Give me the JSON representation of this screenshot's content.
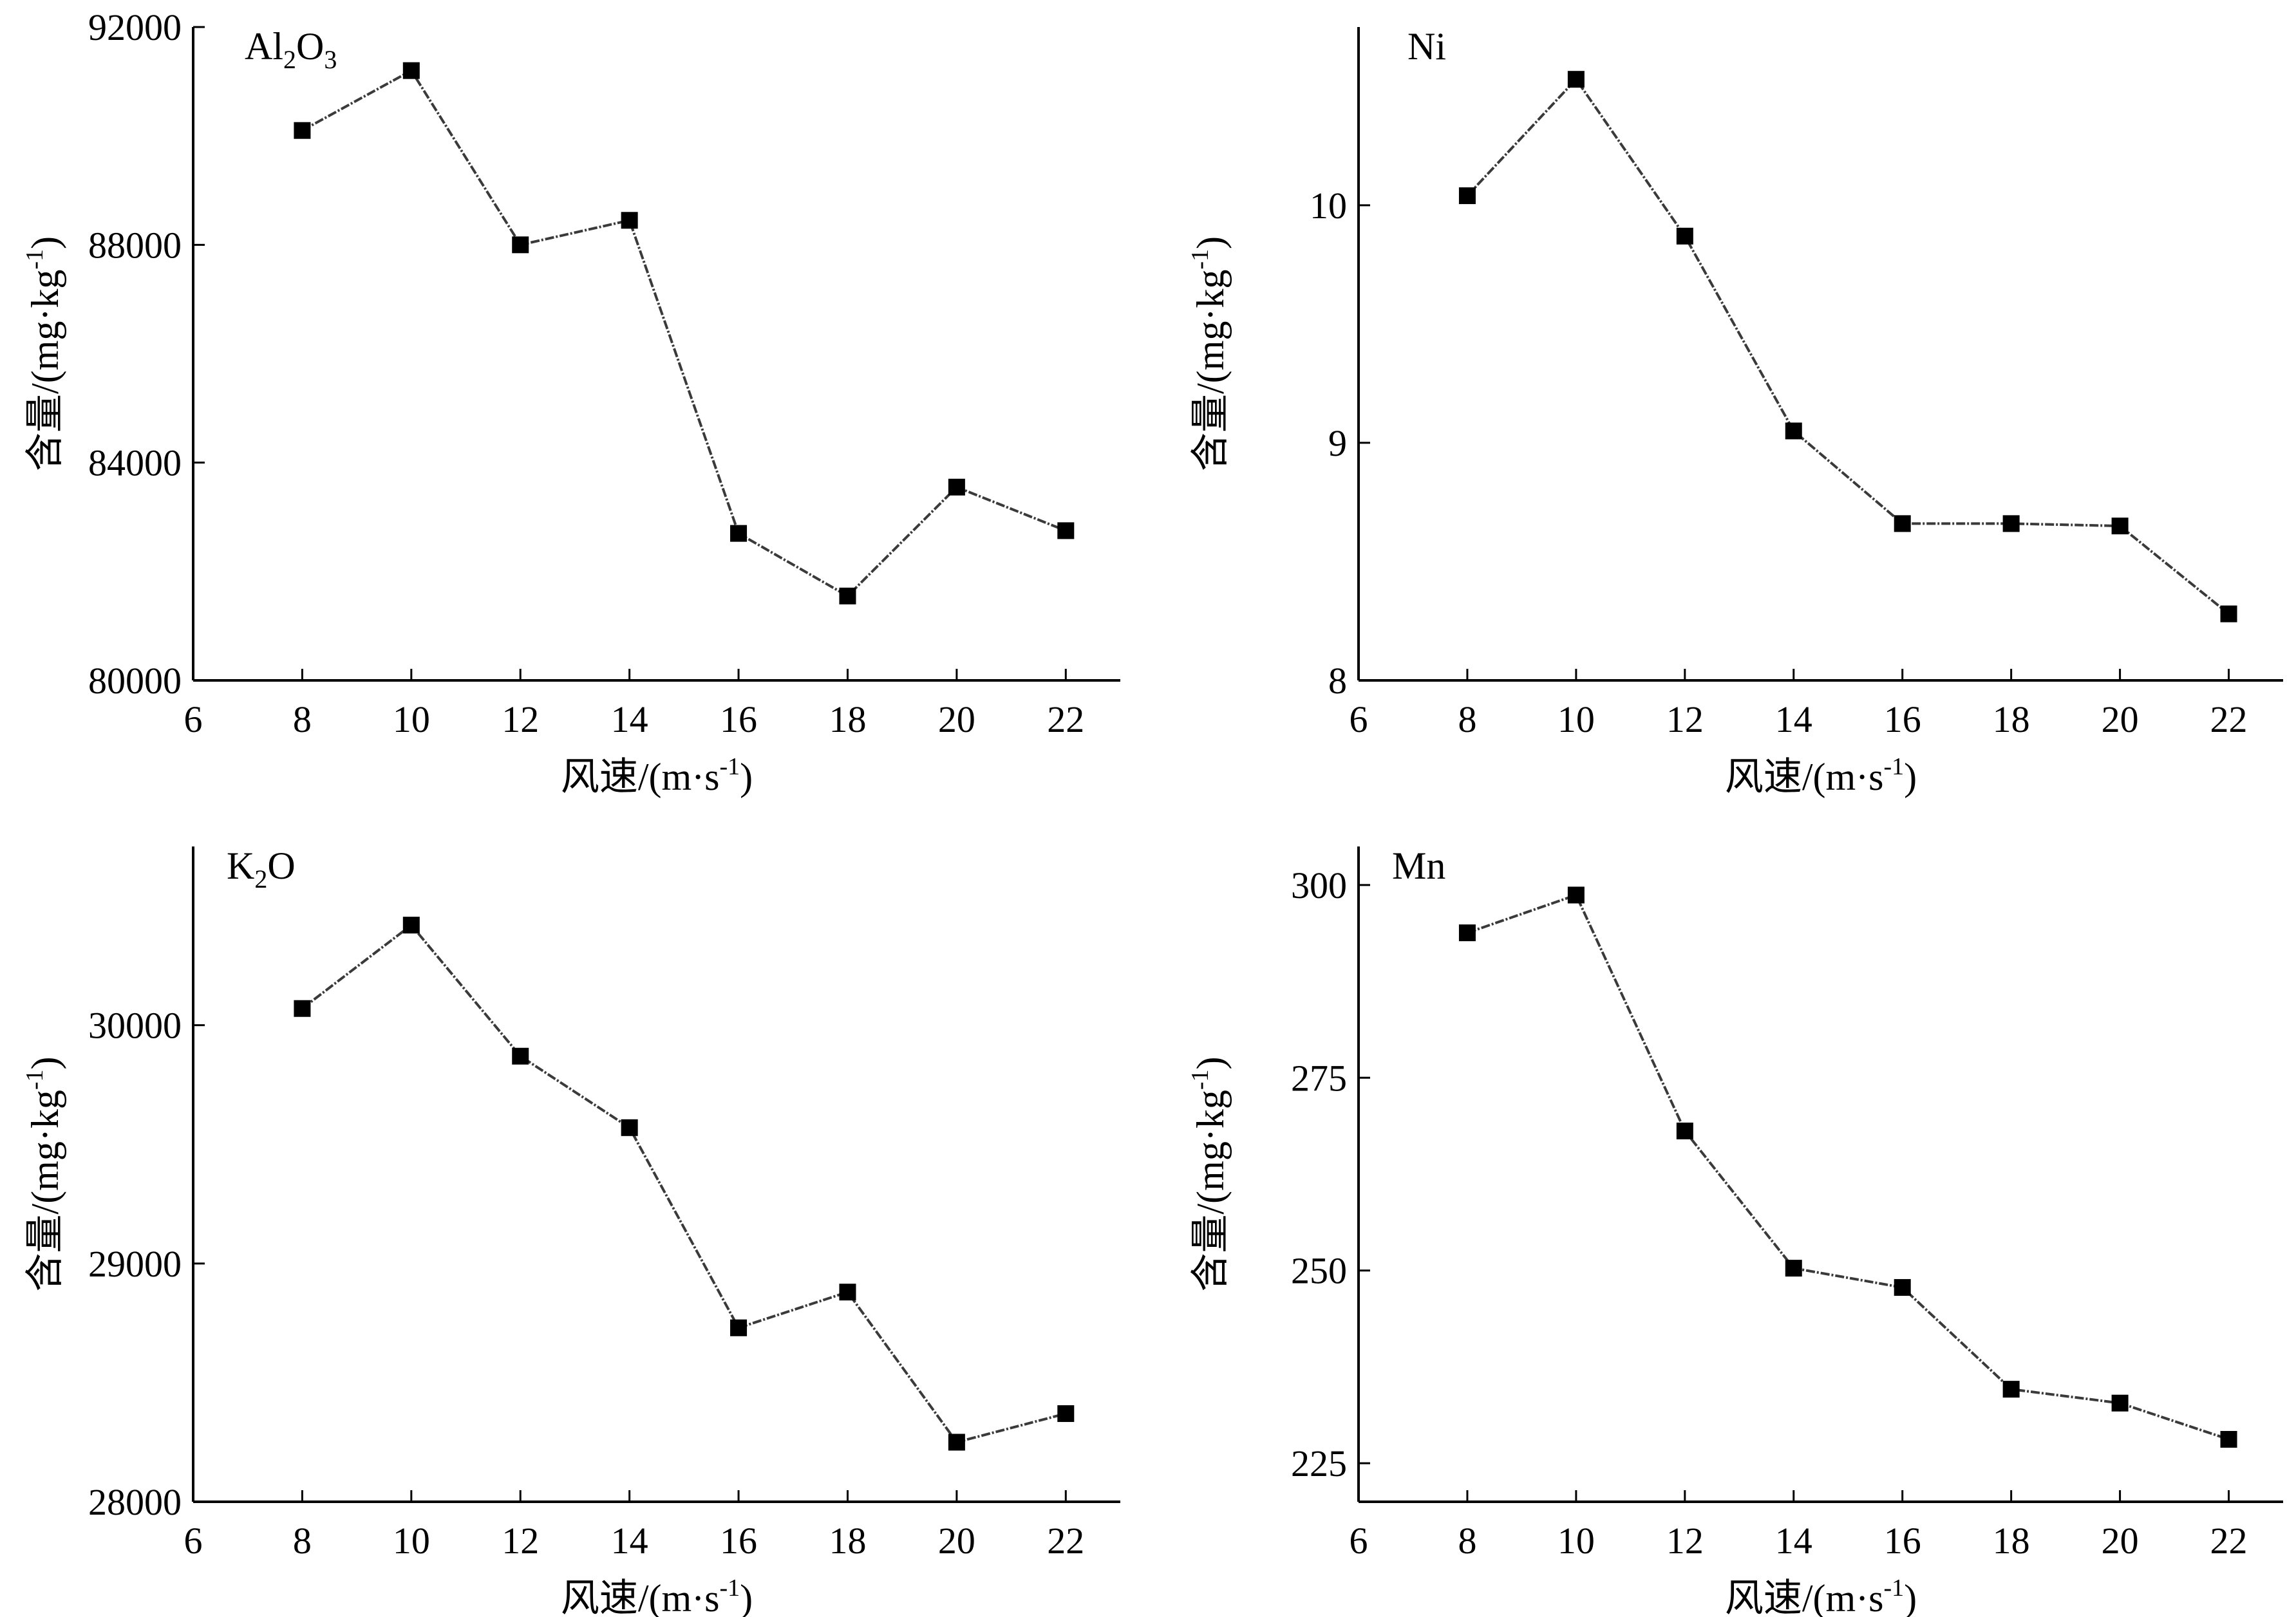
{
  "colors": {
    "line": "#3a3a3a",
    "marker": "#000000",
    "axis": "#000000",
    "background": "#ffffff"
  },
  "chart_data": [
    {
      "type": "line",
      "label": {
        "main": "Al",
        "sub1": "2",
        "mid": "O",
        "sub2": "3"
      },
      "xlabel": "风速/(m·s-1)",
      "ylabel": "含量/(mg·kg-1)",
      "xlim": [
        6,
        23
      ],
      "ylim": [
        80000,
        92000
      ],
      "xticks": [
        6,
        8,
        10,
        12,
        14,
        16,
        18,
        20,
        22
      ],
      "yticks": [
        80000,
        84000,
        88000,
        92000
      ],
      "x": [
        8,
        10,
        12,
        14,
        16,
        18,
        20,
        22
      ],
      "y": [
        90100,
        91200,
        88000,
        88450,
        82700,
        81550,
        83550,
        82750
      ]
    },
    {
      "type": "line",
      "label": {
        "main": "Ni",
        "sub1": "",
        "mid": "",
        "sub2": ""
      },
      "xlabel": "风速/(m·s-1)",
      "ylabel": "含量/(mg·kg-1)",
      "xlim": [
        6,
        23
      ],
      "ylim": [
        8,
        10.75
      ],
      "xticks": [
        6,
        8,
        10,
        12,
        14,
        16,
        18,
        20,
        22
      ],
      "yticks": [
        8,
        9,
        10
      ],
      "x": [
        8,
        10,
        12,
        14,
        16,
        18,
        20,
        22
      ],
      "y": [
        10.04,
        10.53,
        9.87,
        9.05,
        8.66,
        8.66,
        8.65,
        8.28
      ]
    },
    {
      "type": "line",
      "label": {
        "main": "K",
        "sub1": "2",
        "mid": "O",
        "sub2": ""
      },
      "xlabel": "风速/(m·s-1)",
      "ylabel": "含量/(mg·kg-1)",
      "xlim": [
        6,
        23
      ],
      "ylim": [
        28000,
        30750
      ],
      "xticks": [
        6,
        8,
        10,
        12,
        14,
        16,
        18,
        20,
        22
      ],
      "yticks": [
        28000,
        29000,
        30000
      ],
      "x": [
        8,
        10,
        12,
        14,
        16,
        18,
        20,
        22
      ],
      "y": [
        30070,
        30420,
        29870,
        29570,
        28730,
        28880,
        28250,
        28370
      ]
    },
    {
      "type": "line",
      "label": {
        "main": "Mn",
        "sub1": "",
        "mid": "",
        "sub2": ""
      },
      "xlabel": "风速/(m·s-1)",
      "ylabel": "含量/(mg·kg-1)",
      "xlim": [
        6,
        23
      ],
      "ylim": [
        220,
        305
      ],
      "xticks": [
        6,
        8,
        10,
        12,
        14,
        16,
        18,
        20,
        22
      ],
      "yticks": [
        225,
        250,
        275,
        300
      ],
      "x": [
        8,
        10,
        12,
        14,
        16,
        18,
        20,
        22
      ],
      "y": [
        293.8,
        298.7,
        268.1,
        250.3,
        247.8,
        234.6,
        232.8,
        228.1
      ]
    }
  ]
}
